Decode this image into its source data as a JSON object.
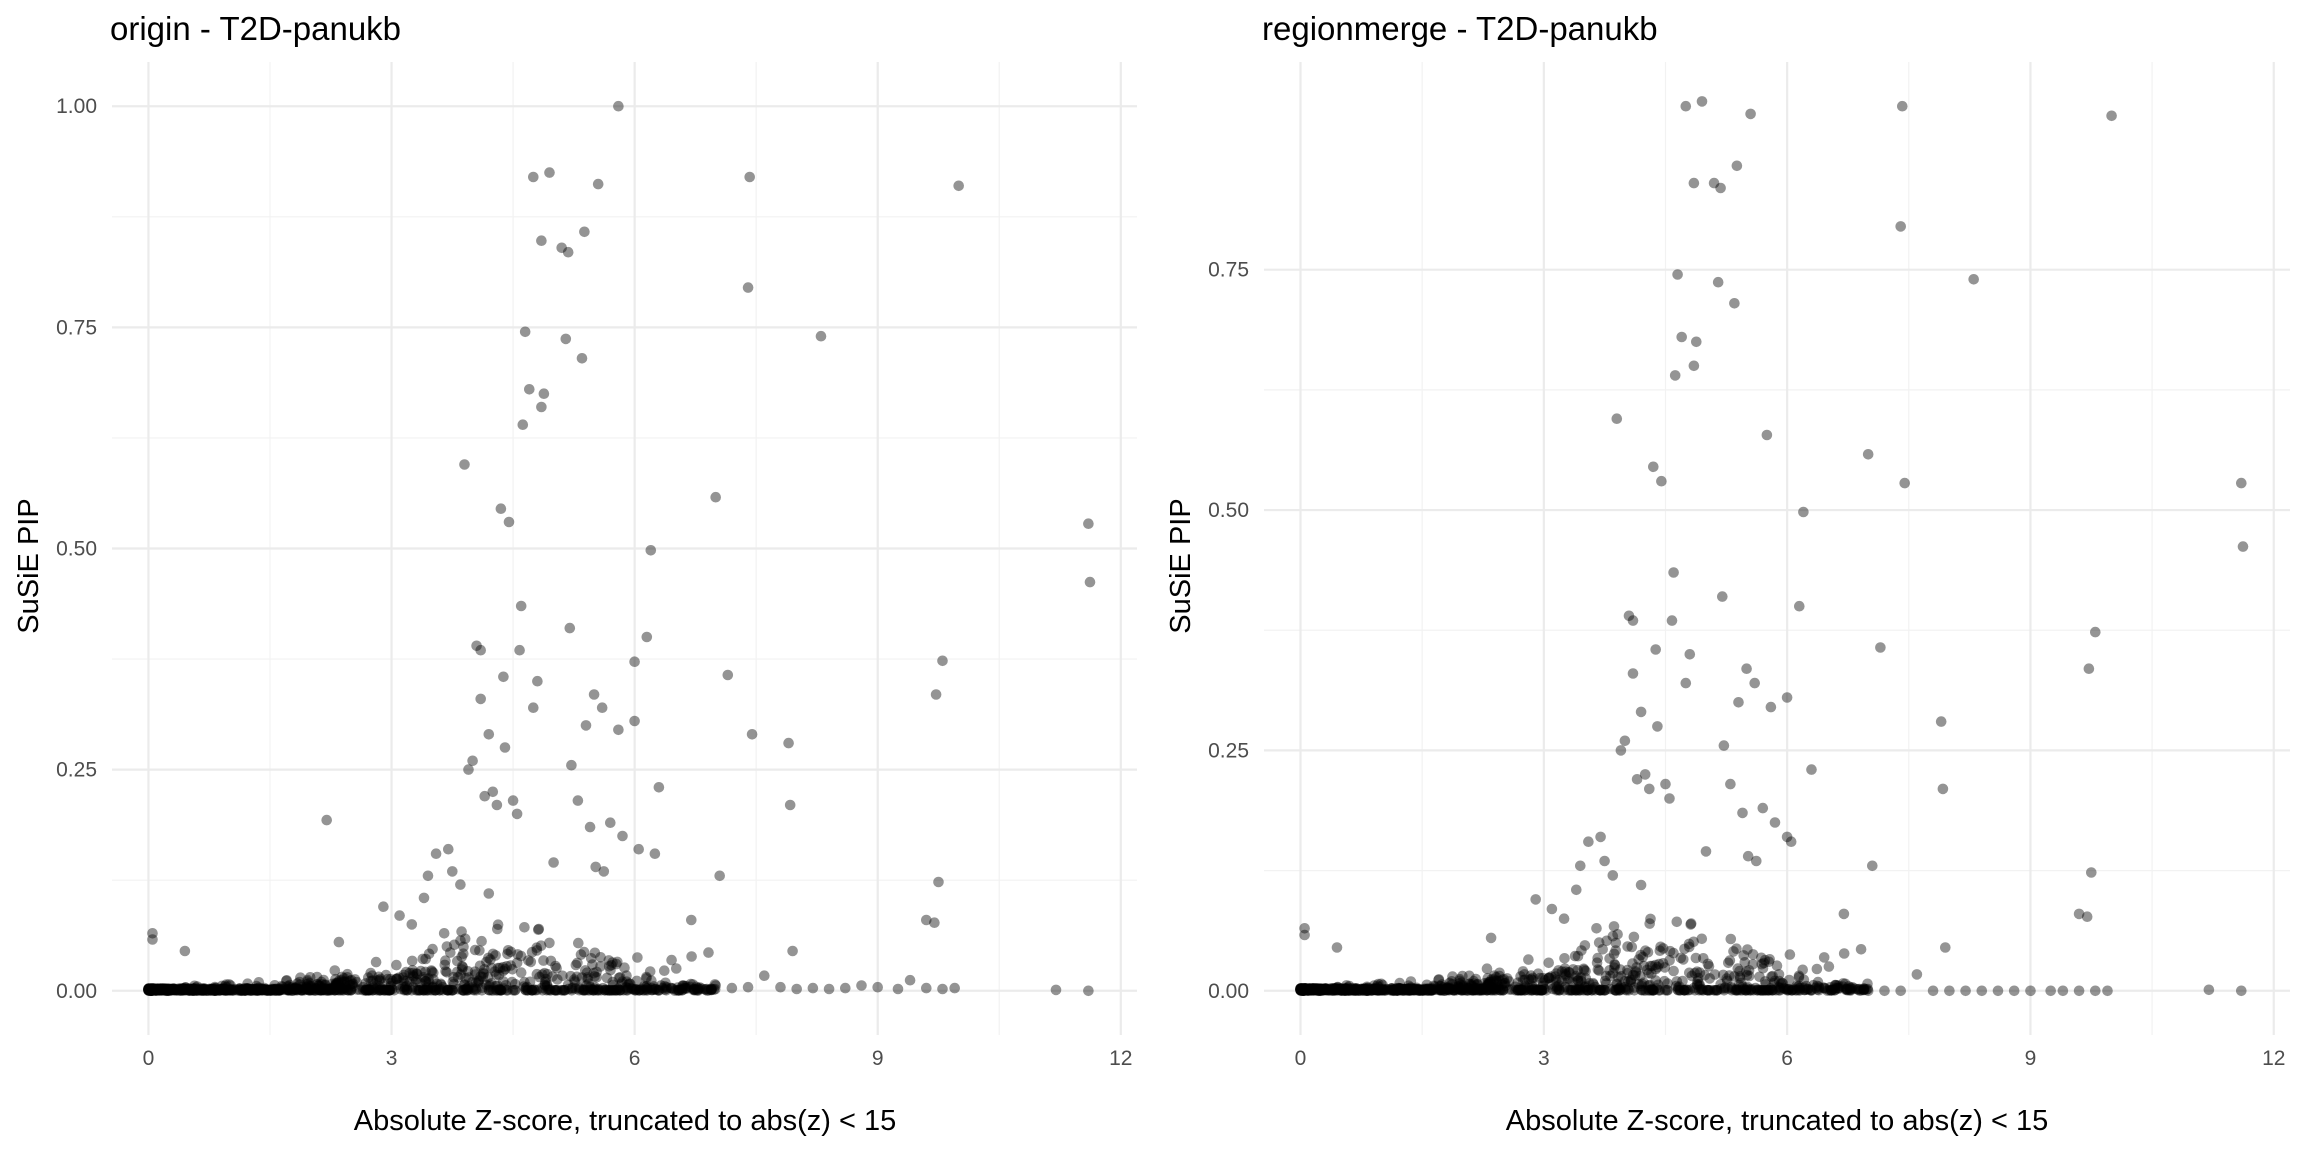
{
  "chart_data": [
    {
      "type": "scatter",
      "title": "origin - T2D-panukb",
      "xlabel": "Absolute Z-score, truncated to abs(z) < 15",
      "ylabel": "SuSiE PIP",
      "xlim": [
        -0.45,
        12.2
      ],
      "ylim": [
        -0.05,
        1.05
      ],
      "xticks": [
        0,
        3,
        6,
        9,
        12
      ],
      "xtick_labels": [
        "0",
        "3",
        "6",
        "9",
        "12"
      ],
      "yticks": [
        0,
        0.25,
        0.5,
        0.75,
        1.0
      ],
      "ytick_labels": [
        "0.00",
        "0.25",
        "0.50",
        "0.75",
        "1.00"
      ],
      "points": [
        [
          0.05,
          0.065
        ],
        [
          0.05,
          0.058
        ],
        [
          0.45,
          0.045
        ],
        [
          2.2,
          0.193
        ],
        [
          2.35,
          0.055
        ],
        [
          2.9,
          0.095
        ],
        [
          3.1,
          0.085
        ],
        [
          3.25,
          0.075
        ],
        [
          3.4,
          0.105
        ],
        [
          3.45,
          0.13
        ],
        [
          3.55,
          0.155
        ],
        [
          3.65,
          0.065
        ],
        [
          3.7,
          0.16
        ],
        [
          3.75,
          0.135
        ],
        [
          3.85,
          0.12
        ],
        [
          3.9,
          0.595
        ],
        [
          3.95,
          0.25
        ],
        [
          4.0,
          0.26
        ],
        [
          4.05,
          0.39
        ],
        [
          4.1,
          0.385
        ],
        [
          4.1,
          0.33
        ],
        [
          4.15,
          0.22
        ],
        [
          4.2,
          0.11
        ],
        [
          4.2,
          0.29
        ],
        [
          4.25,
          0.225
        ],
        [
          4.3,
          0.21
        ],
        [
          4.35,
          0.545
        ],
        [
          4.38,
          0.355
        ],
        [
          4.4,
          0.275
        ],
        [
          4.45,
          0.53
        ],
        [
          4.5,
          0.215
        ],
        [
          4.55,
          0.2
        ],
        [
          4.58,
          0.385
        ],
        [
          4.6,
          0.435
        ],
        [
          4.62,
          0.64
        ],
        [
          4.65,
          0.745
        ],
        [
          4.7,
          0.68
        ],
        [
          4.75,
          0.92
        ],
        [
          4.75,
          0.32
        ],
        [
          4.8,
          0.35
        ],
        [
          4.85,
          0.66
        ],
        [
          4.85,
          0.848
        ],
        [
          4.88,
          0.675
        ],
        [
          4.95,
          0.925
        ],
        [
          5.0,
          0.145
        ],
        [
          5.1,
          0.84
        ],
        [
          5.15,
          0.737
        ],
        [
          5.18,
          0.835
        ],
        [
          5.2,
          0.41
        ],
        [
          5.22,
          0.255
        ],
        [
          5.3,
          0.215
        ],
        [
          5.35,
          0.715
        ],
        [
          5.38,
          0.858
        ],
        [
          5.4,
          0.3
        ],
        [
          5.45,
          0.185
        ],
        [
          5.5,
          0.335
        ],
        [
          5.52,
          0.14
        ],
        [
          5.55,
          0.912
        ],
        [
          5.6,
          0.32
        ],
        [
          5.62,
          0.135
        ],
        [
          5.7,
          0.19
        ],
        [
          5.8,
          1.0
        ],
        [
          5.8,
          0.295
        ],
        [
          5.85,
          0.175
        ],
        [
          6.0,
          0.305
        ],
        [
          6.0,
          0.372
        ],
        [
          6.05,
          0.16
        ],
        [
          6.15,
          0.4
        ],
        [
          6.2,
          0.498
        ],
        [
          6.25,
          0.155
        ],
        [
          6.3,
          0.23
        ],
        [
          6.7,
          0.08
        ],
        [
          7.0,
          0.558
        ],
        [
          7.05,
          0.13
        ],
        [
          7.15,
          0.357
        ],
        [
          7.4,
          0.795
        ],
        [
          7.42,
          0.92
        ],
        [
          7.45,
          0.29
        ],
        [
          7.6,
          0.017
        ],
        [
          7.9,
          0.28
        ],
        [
          7.92,
          0.21
        ],
        [
          7.95,
          0.045
        ],
        [
          8.3,
          0.74
        ],
        [
          9.6,
          0.08
        ],
        [
          9.7,
          0.077
        ],
        [
          9.72,
          0.335
        ],
        [
          9.75,
          0.123
        ],
        [
          9.8,
          0.373
        ],
        [
          10.0,
          0.91
        ],
        [
          11.6,
          0.528
        ],
        [
          11.62,
          0.462
        ],
        [
          11.6,
          0.0
        ],
        [
          11.2,
          0.001
        ],
        [
          9.95,
          0.003
        ],
        [
          9.8,
          0.002
        ],
        [
          9.6,
          0.003
        ],
        [
          9.4,
          0.012
        ],
        [
          9.25,
          0.002
        ],
        [
          9.0,
          0.004
        ],
        [
          8.8,
          0.006
        ],
        [
          8.6,
          0.003
        ],
        [
          8.4,
          0.002
        ],
        [
          8.2,
          0.003
        ],
        [
          8.0,
          0.002
        ],
        [
          7.8,
          0.004
        ],
        [
          7.4,
          0.004
        ],
        [
          7.2,
          0.003
        ],
        [
          7.0,
          0.006
        ]
      ]
    },
    {
      "type": "scatter",
      "title": "regionmerge - T2D-panukb",
      "xlabel": "Absolute Z-score, truncated to abs(z) < 15",
      "ylabel": "SuSiE PIP",
      "xlim": [
        -0.45,
        12.2
      ],
      "ylim": [
        -0.046,
        0.966
      ],
      "xticks": [
        0,
        3,
        6,
        9,
        12
      ],
      "xtick_labels": [
        "0",
        "3",
        "6",
        "9",
        "12"
      ],
      "yticks": [
        0,
        0.25,
        0.5,
        0.75
      ],
      "ytick_labels": [
        "0.00",
        "0.25",
        "0.50",
        "0.75"
      ],
      "points": [
        [
          0.05,
          0.065
        ],
        [
          0.05,
          0.058
        ],
        [
          0.45,
          0.045
        ],
        [
          2.35,
          0.055
        ],
        [
          2.9,
          0.095
        ],
        [
          3.1,
          0.085
        ],
        [
          3.25,
          0.075
        ],
        [
          3.4,
          0.105
        ],
        [
          3.45,
          0.13
        ],
        [
          3.55,
          0.155
        ],
        [
          3.65,
          0.065
        ],
        [
          3.7,
          0.16
        ],
        [
          3.75,
          0.135
        ],
        [
          3.85,
          0.12
        ],
        [
          3.9,
          0.595
        ],
        [
          3.95,
          0.25
        ],
        [
          4.0,
          0.26
        ],
        [
          4.05,
          0.39
        ],
        [
          4.1,
          0.385
        ],
        [
          4.1,
          0.33
        ],
        [
          4.15,
          0.22
        ],
        [
          4.2,
          0.11
        ],
        [
          4.2,
          0.29
        ],
        [
          4.25,
          0.225
        ],
        [
          4.3,
          0.21
        ],
        [
          4.35,
          0.545
        ],
        [
          4.38,
          0.355
        ],
        [
          4.4,
          0.275
        ],
        [
          4.45,
          0.53
        ],
        [
          4.5,
          0.215
        ],
        [
          4.55,
          0.2
        ],
        [
          4.58,
          0.385
        ],
        [
          4.6,
          0.435
        ],
        [
          4.62,
          0.64
        ],
        [
          4.65,
          0.745
        ],
        [
          4.7,
          0.68
        ],
        [
          4.75,
          0.92
        ],
        [
          4.75,
          0.32
        ],
        [
          4.8,
          0.35
        ],
        [
          4.85,
          0.65
        ],
        [
          4.85,
          0.84
        ],
        [
          4.88,
          0.675
        ],
        [
          4.95,
          0.925
        ],
        [
          5.0,
          0.145
        ],
        [
          5.1,
          0.84
        ],
        [
          5.15,
          0.737
        ],
        [
          5.18,
          0.835
        ],
        [
          5.2,
          0.41
        ],
        [
          5.22,
          0.255
        ],
        [
          5.3,
          0.215
        ],
        [
          5.35,
          0.715
        ],
        [
          5.38,
          0.858
        ],
        [
          5.4,
          0.3
        ],
        [
          5.45,
          0.185
        ],
        [
          5.5,
          0.335
        ],
        [
          5.52,
          0.14
        ],
        [
          5.55,
          0.912
        ],
        [
          5.6,
          0.32
        ],
        [
          5.62,
          0.135
        ],
        [
          5.7,
          0.19
        ],
        [
          5.75,
          0.578
        ],
        [
          5.8,
          0.295
        ],
        [
          5.85,
          0.175
        ],
        [
          6.0,
          0.305
        ],
        [
          6.0,
          0.16
        ],
        [
          6.05,
          0.155
        ],
        [
          6.15,
          0.4
        ],
        [
          6.2,
          0.498
        ],
        [
          6.3,
          0.23
        ],
        [
          6.7,
          0.08
        ],
        [
          7.0,
          0.558
        ],
        [
          7.05,
          0.13
        ],
        [
          7.15,
          0.357
        ],
        [
          7.4,
          0.795
        ],
        [
          7.42,
          0.92
        ],
        [
          7.45,
          0.528
        ],
        [
          7.6,
          0.017
        ],
        [
          7.9,
          0.28
        ],
        [
          7.92,
          0.21
        ],
        [
          7.95,
          0.045
        ],
        [
          8.3,
          0.74
        ],
        [
          9.6,
          0.08
        ],
        [
          9.7,
          0.077
        ],
        [
          9.72,
          0.335
        ],
        [
          9.75,
          0.123
        ],
        [
          9.8,
          0.373
        ],
        [
          10.0,
          0.91
        ],
        [
          11.6,
          0.528
        ],
        [
          11.62,
          0.462
        ],
        [
          11.6,
          0.0
        ],
        [
          11.2,
          0.001
        ],
        [
          9.95,
          0.0
        ],
        [
          9.8,
          0.0
        ],
        [
          9.6,
          0.0
        ],
        [
          9.4,
          0.0
        ],
        [
          9.25,
          0.0
        ],
        [
          9.0,
          0.0
        ],
        [
          8.8,
          0.0
        ],
        [
          8.6,
          0.0
        ],
        [
          8.4,
          0.0
        ],
        [
          8.2,
          0.0
        ],
        [
          8.0,
          0.0
        ],
        [
          7.8,
          0.0
        ],
        [
          7.4,
          0.0
        ],
        [
          7.2,
          0.0
        ],
        [
          7.0,
          0.0
        ]
      ]
    }
  ]
}
